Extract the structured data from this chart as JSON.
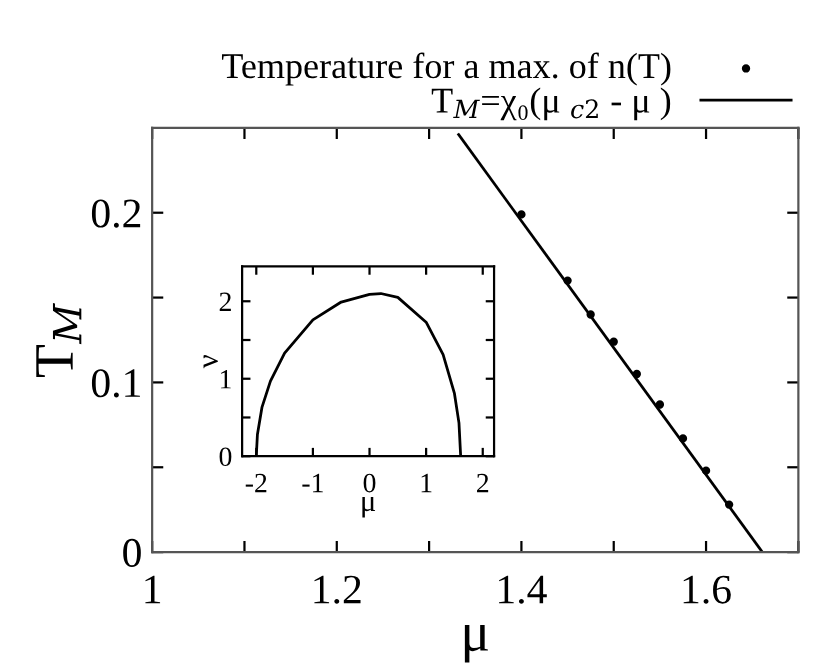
{
  "chart_data": [
    {
      "type": "scatter",
      "xlabel": "μ",
      "ylabel": "T$_{M}$",
      "xlim": [
        1,
        1.7
      ],
      "ylim": [
        0,
        0.25
      ],
      "xticks": [
        1,
        {
          "value": 1.1,
          "label": null
        },
        1.2,
        {
          "value": 1.3,
          "label": null
        },
        1.4,
        {
          "value": 1.5,
          "label": null
        },
        1.6,
        {
          "value": 1.7,
          "label": null
        }
      ],
      "yticks": [
        0,
        {
          "value": 0.05,
          "label": null
        },
        0.1,
        {
          "value": 0.15,
          "label": null
        },
        0.2
      ],
      "legend": "top right",
      "grid": false,
      "series": [
        {
          "name": "Temperature for a max. of n(T)",
          "type": "scatter",
          "marker": "circle",
          "color": "#000000",
          "x": [
            1.4,
            1.45,
            1.475,
            1.5,
            1.525,
            1.55,
            1.575,
            1.6,
            1.625
          ],
          "values": [
            0.199,
            0.16,
            0.14,
            0.124,
            0.105,
            0.087,
            0.067,
            0.048,
            0.028
          ]
        },
        {
          "name": "T$_{M}$=χ₀(μ $_{c2}$ - μ )",
          "type": "line",
          "marker": "none",
          "line_style": "solid",
          "color": "#000000",
          "x": [
            1.332,
            1.661
          ],
          "values": [
            0.246,
            0
          ]
        }
      ]
    },
    {
      "type": "line",
      "xlabel": "μ",
      "ylabel": "ν",
      "xlim": [
        -2.25,
        2.2
      ],
      "ylim": [
        0,
        2.45
      ],
      "xticks": [
        -2,
        -1,
        0,
        1,
        2
      ],
      "yticks": [
        0,
        {
          "value": 0.5,
          "label": null
        },
        1,
        {
          "value": 1.5,
          "label": null
        },
        2
      ],
      "grid": false,
      "series": [
        {
          "color": "#000000",
          "line_style": "solid",
          "marker": "none",
          "x": [
            -2,
            -1.98,
            -1.9,
            -1.75,
            -1.5,
            -1.0,
            -0.5,
            0,
            0.2,
            0.5,
            1.0,
            1.3,
            1.5,
            1.58,
            1.61
          ],
          "values": [
            0,
            0.28,
            0.63,
            0.97,
            1.33,
            1.76,
            1.99,
            2.09,
            2.1,
            2.05,
            1.73,
            1.31,
            0.81,
            0.43,
            0
          ]
        }
      ]
    }
  ]
}
